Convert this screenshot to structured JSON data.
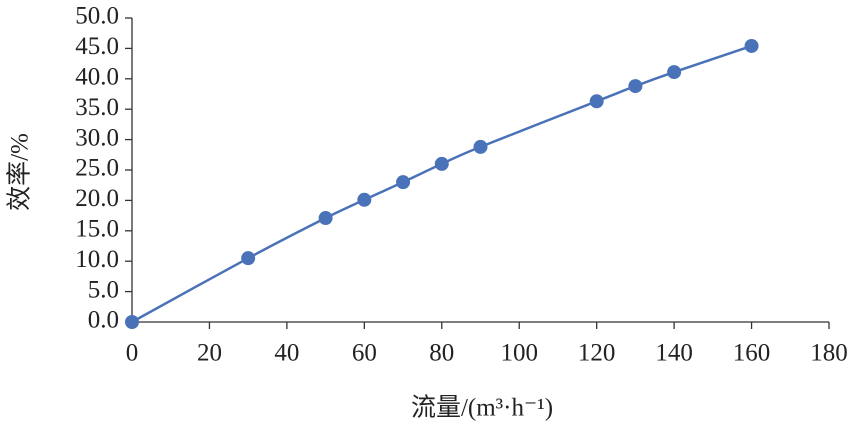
{
  "chart_data": {
    "type": "line",
    "x_label": "流量/(m³·h⁻¹)",
    "y_label": "效率/%",
    "x": [
      0,
      30,
      50,
      60,
      70,
      80,
      90,
      120,
      130,
      140,
      160
    ],
    "series": [
      {
        "color": "#4a72b8",
        "values": [
          0,
          10.5,
          17.1,
          20.1,
          23.0,
          26.0,
          28.8,
          36.3,
          38.8,
          41.1,
          45.4
        ]
      }
    ],
    "xlim": [
      0,
      180
    ],
    "xticks": [
      0,
      20,
      40,
      60,
      80,
      100,
      120,
      140,
      160,
      180
    ],
    "ylim": [
      0,
      50
    ],
    "yticks": [
      {
        "value": 0,
        "label": "0.0"
      },
      {
        "value": 5,
        "label": "5.0"
      },
      {
        "value": 10,
        "label": "10.0"
      },
      {
        "value": 15,
        "label": "15.0"
      },
      {
        "value": 20,
        "label": "20.0"
      },
      {
        "value": 25,
        "label": "25.0"
      },
      {
        "value": 30,
        "label": "30.0"
      },
      {
        "value": 35,
        "label": "35.0"
      },
      {
        "value": 40,
        "label": "40.0"
      },
      {
        "value": 45,
        "label": "45.0"
      },
      {
        "value": 50,
        "label": "50.0"
      }
    ],
    "grid": false,
    "markers": true
  }
}
